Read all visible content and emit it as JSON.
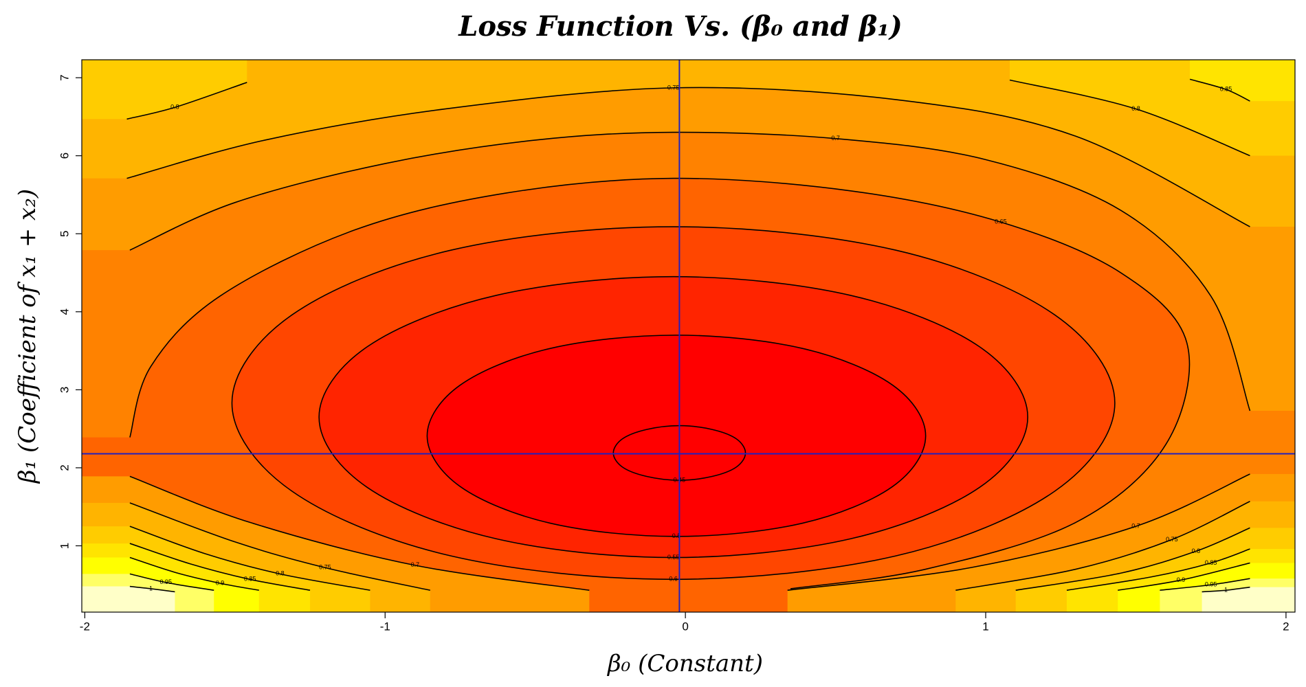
{
  "chart_data": {
    "type": "contour",
    "title": "Loss Function Vs. (β₀ and β₁)",
    "x_label": "β₀ (Constant)",
    "y_label": "β₁ (Coefficient of x₁ + x₂)",
    "xlim": [
      -2.01,
      2.03
    ],
    "ylim": [
      0.15,
      7.23
    ],
    "xticks": [
      -2,
      -1,
      0,
      1,
      2
    ],
    "yticks": [
      1,
      2,
      3,
      4,
      5,
      6,
      7
    ],
    "fill_colors": [
      "#ff0000",
      "#ff0000",
      "#ff2400",
      "#ff4600",
      "#ff6400",
      "#ff8200",
      "#ff9c00",
      "#ffb400",
      "#ffcc00",
      "#ffe400",
      "#ffff00",
      "#ffff66",
      "#ffffc8"
    ],
    "line_color": "#000000",
    "minimum": {
      "x": -0.02,
      "y": 2.18
    },
    "crosshair_color": "#2020c0",
    "contours": [
      {
        "level": 0.45,
        "closed": true,
        "x": [
          0.2,
          0.17,
          0.09,
          -0.02,
          -0.13,
          -0.21,
          -0.24,
          -0.21,
          -0.13,
          -0.02,
          0.09,
          0.17
        ],
        "y": [
          2.19,
          2.37,
          2.49,
          2.54,
          2.49,
          2.37,
          2.19,
          2.01,
          1.89,
          1.84,
          1.89,
          2.01
        ]
      },
      {
        "level": 0.5,
        "closed": true,
        "x": [
          0.8,
          0.69,
          0.39,
          -0.03,
          -0.45,
          -0.75,
          -0.86,
          -0.75,
          -0.45,
          -0.03,
          0.39,
          0.69
        ],
        "y": [
          2.41,
          3.06,
          3.53,
          3.7,
          3.53,
          3.06,
          2.41,
          1.76,
          1.29,
          1.12,
          1.29,
          1.76
        ]
      },
      {
        "level": 0.55,
        "closed": true,
        "x": [
          1.14,
          0.98,
          0.55,
          -0.04,
          -0.63,
          -1.06,
          -1.22,
          -1.06,
          -0.63,
          -0.04,
          0.55,
          0.98
        ],
        "y": [
          2.65,
          3.55,
          4.21,
          4.45,
          4.21,
          3.55,
          2.65,
          1.75,
          1.09,
          0.85,
          1.09,
          1.75
        ]
      },
      {
        "level": 0.6,
        "closed": true,
        "x": [
          1.43,
          1.23,
          0.7,
          -0.04,
          -0.78,
          -1.31,
          -1.51,
          -1.31,
          -0.78,
          -0.04,
          0.7,
          1.23
        ],
        "y": [
          2.83,
          3.96,
          4.79,
          5.09,
          4.79,
          3.96,
          2.83,
          1.7,
          0.87,
          0.57,
          0.87,
          1.7
        ]
      },
      {
        "level": 0.65,
        "closed": false,
        "x": [
          -1.85,
          -1.78,
          -1.55,
          -1.1,
          -0.6,
          -0.04,
          0.55,
          1.05,
          1.45,
          1.67,
          1.6,
          1.3,
          0.8,
          0.35
        ],
        "y": [
          2.39,
          3.3,
          4.2,
          5.05,
          5.52,
          5.71,
          5.55,
          5.15,
          4.5,
          3.6,
          2.3,
          1.3,
          0.7,
          0.45
        ]
      },
      {
        "level": 0.7,
        "closed": false,
        "x": [
          -1.85,
          -1.5,
          -1.0,
          -0.5,
          -0.04,
          0.5,
          1.0,
          1.45,
          1.75,
          1.88
        ],
        "y": [
          4.79,
          5.4,
          5.9,
          6.2,
          6.3,
          6.22,
          5.95,
          5.3,
          4.2,
          2.73
        ]
      },
      {
        "level": 0.75,
        "closed": false,
        "x": [
          -1.86,
          -1.4,
          -0.8,
          -0.04,
          0.7,
          1.3,
          1.88
        ],
        "y": [
          5.71,
          6.2,
          6.6,
          6.87,
          6.72,
          6.25,
          5.09
        ]
      },
      {
        "level": 0.8,
        "closed": false,
        "x": [
          -1.86,
          -1.7,
          -1.46
        ],
        "y": [
          6.47,
          6.62,
          6.94
        ]
      },
      {
        "level": 0.8,
        "closed": false,
        "x": [
          1.08,
          1.5,
          1.88
        ],
        "y": [
          6.97,
          6.6,
          6.0
        ]
      },
      {
        "level": 0.85,
        "closed": false,
        "x": [
          1.68,
          1.8,
          1.88
        ],
        "y": [
          6.98,
          6.85,
          6.7
        ]
      },
      {
        "level": 0.7,
        "closed": false,
        "x": [
          -1.85,
          -1.45,
          -0.9,
          -0.32
        ],
        "y": [
          1.89,
          1.3,
          0.75,
          0.43
        ]
      },
      {
        "level": 0.75,
        "closed": false,
        "x": [
          -1.85,
          -1.5,
          -1.2,
          -0.85
        ],
        "y": [
          1.55,
          1.05,
          0.72,
          0.43
        ]
      },
      {
        "level": 0.8,
        "closed": false,
        "x": [
          -1.85,
          -1.6,
          -1.35,
          -1.05
        ],
        "y": [
          1.25,
          0.9,
          0.64,
          0.43
        ]
      },
      {
        "level": 0.85,
        "closed": false,
        "x": [
          -1.85,
          -1.65,
          -1.45,
          -1.25
        ],
        "y": [
          1.03,
          0.77,
          0.57,
          0.43
        ]
      },
      {
        "level": 0.9,
        "closed": false,
        "x": [
          -1.85,
          -1.7,
          -1.55,
          -1.42
        ],
        "y": [
          0.85,
          0.66,
          0.52,
          0.43
        ]
      },
      {
        "level": 0.95,
        "closed": false,
        "x": [
          -1.85,
          -1.73,
          -1.57
        ],
        "y": [
          0.64,
          0.53,
          0.43
        ]
      },
      {
        "level": 1,
        "closed": false,
        "x": [
          -1.85,
          -1.78,
          -1.7
        ],
        "y": [
          0.48,
          0.45,
          0.41
        ]
      },
      {
        "level": 0.7,
        "closed": false,
        "x": [
          0.34,
          0.95,
          1.5,
          1.88
        ],
        "y": [
          0.43,
          0.72,
          1.25,
          1.92
        ]
      },
      {
        "level": 0.75,
        "closed": false,
        "x": [
          0.9,
          1.3,
          1.62,
          1.88
        ],
        "y": [
          0.43,
          0.7,
          1.08,
          1.57
        ]
      },
      {
        "level": 0.8,
        "closed": false,
        "x": [
          1.1,
          1.45,
          1.7,
          1.88
        ],
        "y": [
          0.43,
          0.65,
          0.93,
          1.23
        ]
      },
      {
        "level": 0.85,
        "closed": false,
        "x": [
          1.27,
          1.55,
          1.75,
          1.88
        ],
        "y": [
          0.43,
          0.6,
          0.78,
          0.96
        ]
      },
      {
        "level": 0.9,
        "closed": false,
        "x": [
          1.44,
          1.65,
          1.88
        ],
        "y": [
          0.43,
          0.56,
          0.78
        ]
      },
      {
        "level": 0.95,
        "closed": false,
        "x": [
          1.58,
          1.75,
          1.88
        ],
        "y": [
          0.43,
          0.5,
          0.58
        ]
      },
      {
        "level": 1,
        "closed": false,
        "x": [
          1.72,
          1.8,
          1.88
        ],
        "y": [
          0.41,
          0.43,
          0.47
        ]
      }
    ]
  }
}
